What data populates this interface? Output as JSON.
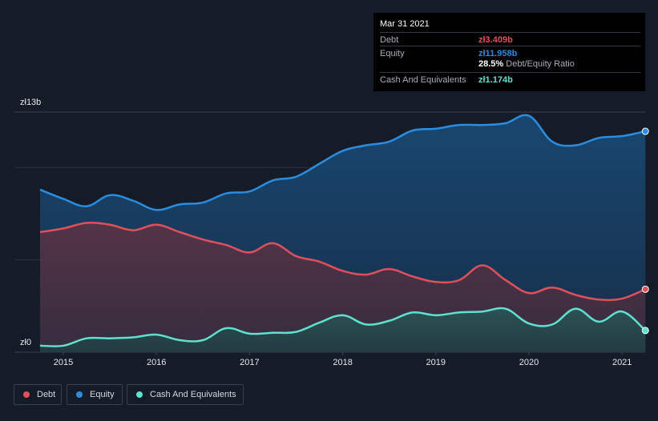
{
  "tooltip": {
    "date": "Mar 31 2021",
    "debt_label": "Debt",
    "debt_value": "zł3.409b",
    "equity_label": "Equity",
    "equity_value": "zł11.958b",
    "ratio_value": "28.5%",
    "ratio_label": "Debt/Equity Ratio",
    "cash_label": "Cash And Equivalents",
    "cash_value": "zł1.174b"
  },
  "legend": {
    "debt": "Debt",
    "equity": "Equity",
    "cash": "Cash And Equivalents"
  },
  "colors": {
    "debt": "#e0505c",
    "equity": "#2a8de0",
    "cash": "#5fe0d0",
    "background": "#151b27"
  },
  "chart_data": {
    "type": "area",
    "title": "",
    "xlabel": "",
    "ylabel": "",
    "ylim": [
      0,
      13
    ],
    "y_unit": "billion PLN",
    "ytick_labels": [
      "zł0",
      "zł13b"
    ],
    "xtick_labels": [
      "2015",
      "2016",
      "2017",
      "2018",
      "2019",
      "2020",
      "2021"
    ],
    "xtick_values": [
      2015,
      2016,
      2017,
      2018,
      2019,
      2020,
      2021
    ],
    "x": [
      2014.75,
      2015.0,
      2015.25,
      2015.5,
      2015.75,
      2016.0,
      2016.25,
      2016.5,
      2016.75,
      2017.0,
      2017.25,
      2017.5,
      2017.75,
      2018.0,
      2018.25,
      2018.5,
      2018.75,
      2019.0,
      2019.25,
      2019.5,
      2019.75,
      2020.0,
      2020.25,
      2020.5,
      2020.75,
      2021.0,
      2021.25
    ],
    "series": [
      {
        "name": "Equity",
        "values": [
          8.8,
          8.3,
          7.9,
          8.5,
          8.2,
          7.7,
          8.0,
          8.1,
          8.6,
          8.7,
          9.3,
          9.5,
          10.2,
          10.9,
          11.2,
          11.4,
          12.0,
          12.1,
          12.3,
          12.3,
          12.4,
          12.8,
          11.4,
          11.2,
          11.6,
          11.7,
          11.958
        ]
      },
      {
        "name": "Debt",
        "values": [
          6.5,
          6.7,
          7.0,
          6.9,
          6.6,
          6.9,
          6.5,
          6.1,
          5.8,
          5.4,
          5.9,
          5.2,
          4.9,
          4.4,
          4.2,
          4.5,
          4.1,
          3.8,
          3.9,
          4.7,
          3.9,
          3.2,
          3.5,
          3.1,
          2.85,
          2.9,
          3.409
        ]
      },
      {
        "name": "Cash And Equivalents",
        "values": [
          0.35,
          0.35,
          0.75,
          0.75,
          0.8,
          0.95,
          0.65,
          0.65,
          1.3,
          1.0,
          1.05,
          1.1,
          1.6,
          2.0,
          1.5,
          1.7,
          2.15,
          2.0,
          2.15,
          2.2,
          2.35,
          1.55,
          1.5,
          2.35,
          1.65,
          2.2,
          1.174
        ]
      }
    ],
    "legend_position": "bottom-left",
    "grid": true
  }
}
